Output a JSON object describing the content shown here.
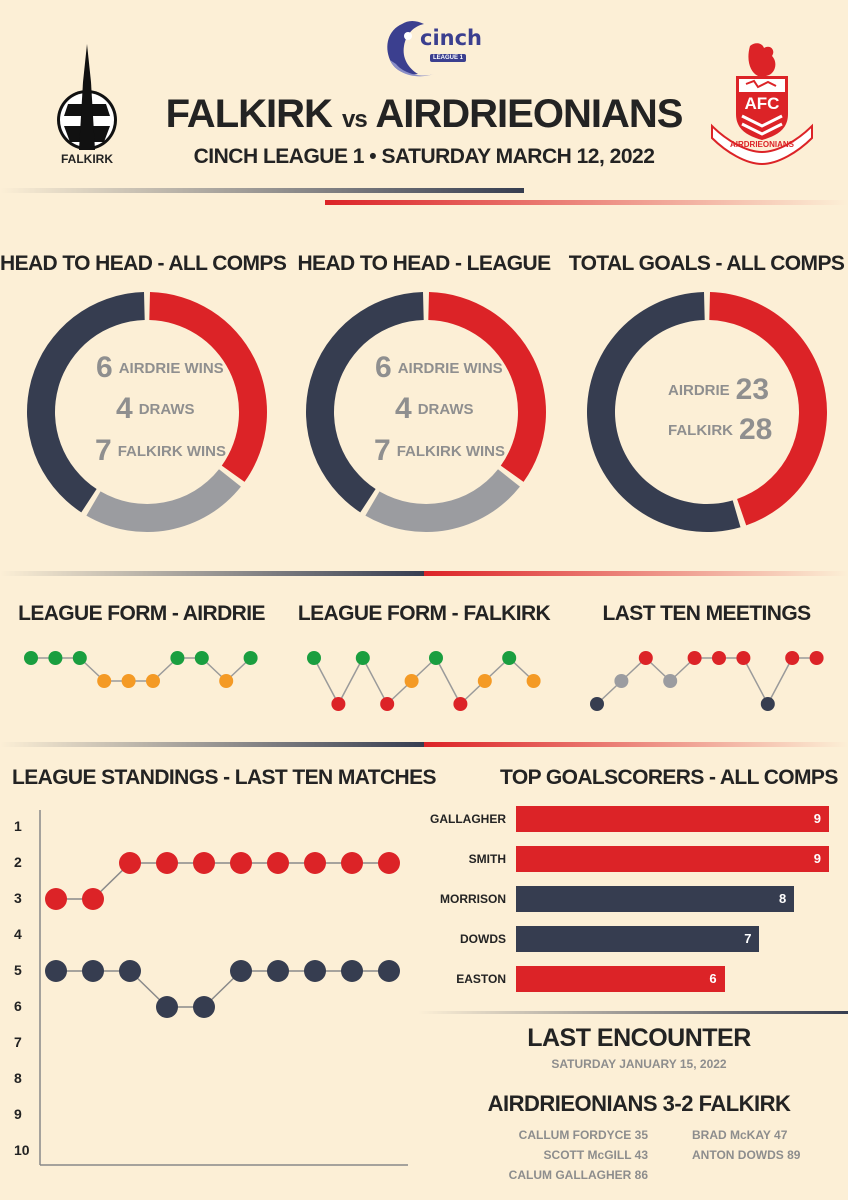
{
  "header": {
    "league_logo_word": "cinch",
    "league_logo_sub": "LEAGUE 1",
    "home_team": "FALKIRK",
    "vs": "vs",
    "away_team": "AIRDRIEONIANS",
    "subtitle": "CINCH LEAGUE 1 • SATURDAY MARCH 12, 2022",
    "falkirk_crest_label": "FALKIRK",
    "airdrie_crest_letters": "AFC",
    "airdrie_crest_scroll": "AIRDRIEONIANS"
  },
  "colors": {
    "background": "#fcefd6",
    "red": "#dc2327",
    "navy": "#363d50",
    "grey": "#9b9ca0",
    "green": "#1a9e3f",
    "orange": "#f49a25"
  },
  "donuts": [
    {
      "title": "HEAD TO HEAD - ALL COMPS",
      "segments": [
        {
          "name": "airdrie",
          "value": 6,
          "color": "red"
        },
        {
          "name": "draws",
          "value": 4,
          "color": "grey"
        },
        {
          "name": "falkirk",
          "value": 7,
          "color": "navy"
        }
      ],
      "lines": [
        {
          "num": "6",
          "label": "AIRDRIE WINS"
        },
        {
          "num": "4",
          "label": "DRAWS"
        },
        {
          "num": "7",
          "label": "FALKIRK WINS"
        }
      ]
    },
    {
      "title": "HEAD TO HEAD - LEAGUE",
      "segments": [
        {
          "name": "airdrie",
          "value": 6,
          "color": "red"
        },
        {
          "name": "draws",
          "value": 4,
          "color": "grey"
        },
        {
          "name": "falkirk",
          "value": 7,
          "color": "navy"
        }
      ],
      "lines": [
        {
          "num": "6",
          "label": "AIRDRIE WINS"
        },
        {
          "num": "4",
          "label": "DRAWS"
        },
        {
          "num": "7",
          "label": "FALKIRK WINS"
        }
      ]
    },
    {
      "title": "TOTAL GOALS - ALL COMPS",
      "segments": [
        {
          "name": "airdrie",
          "value": 23,
          "color": "red"
        },
        {
          "name": "falkirk",
          "value": 28,
          "color": "navy"
        }
      ],
      "goal_lines": [
        {
          "label": "AIRDRIE",
          "num": "23"
        },
        {
          "label": "FALKIRK",
          "num": "28"
        }
      ]
    }
  ],
  "form_charts": [
    {
      "title": "LEAGUE FORM - AIRDRIE",
      "results": [
        "W",
        "W",
        "W",
        "D",
        "D",
        "D",
        "W",
        "W",
        "D",
        "W"
      ]
    },
    {
      "title": "LEAGUE FORM - FALKIRK",
      "results": [
        "W",
        "L",
        "W",
        "L",
        "D",
        "W",
        "L",
        "D",
        "W",
        "D"
      ]
    },
    {
      "title": "LAST TEN MEETINGS",
      "results": [
        "L",
        "D",
        "A",
        "D",
        "A",
        "A",
        "A",
        "L",
        "A",
        "A"
      ]
    }
  ],
  "chart_data": [
    {
      "type": "line",
      "title": "LEAGUE STANDINGS - LAST TEN MATCHES",
      "x": [
        1,
        2,
        3,
        4,
        5,
        6,
        7,
        8,
        9,
        10
      ],
      "ylim": [
        10,
        1
      ],
      "yticks": [
        "1",
        "2",
        "3",
        "4",
        "5",
        "6",
        "7",
        "8",
        "9",
        "10"
      ],
      "series": [
        {
          "color": "red",
          "values": [
            3,
            3,
            2,
            2,
            2,
            2,
            2,
            2,
            2,
            2
          ]
        },
        {
          "color": "navy",
          "values": [
            5,
            5,
            5,
            6,
            6,
            5,
            5,
            5,
            5,
            5
          ]
        }
      ]
    },
    {
      "type": "bar",
      "title": "TOP GOALSCORERS - ALL COMPS",
      "categories": [
        "GALLAGHER",
        "SMITH",
        "MORRISON",
        "DOWDS",
        "EASTON"
      ],
      "values": [
        9,
        9,
        8,
        7,
        6
      ],
      "bar_colors": [
        "red",
        "red",
        "navy",
        "navy",
        "red"
      ],
      "xlim": [
        0,
        9
      ]
    }
  ],
  "last_encounter": {
    "title": "LAST ENCOUNTER",
    "date": "SATURDAY JANUARY 15, 2022",
    "score": "AIRDRIEONIANS 3-2 FALKIRK",
    "airdrie_scorers": [
      "CALLUM FORDYCE 35",
      "SCOTT McGILL 43",
      "CALUM GALLAGHER 86"
    ],
    "falkirk_scorers": [
      "BRAD McKAY 47",
      "ANTON DOWDS 89"
    ]
  }
}
